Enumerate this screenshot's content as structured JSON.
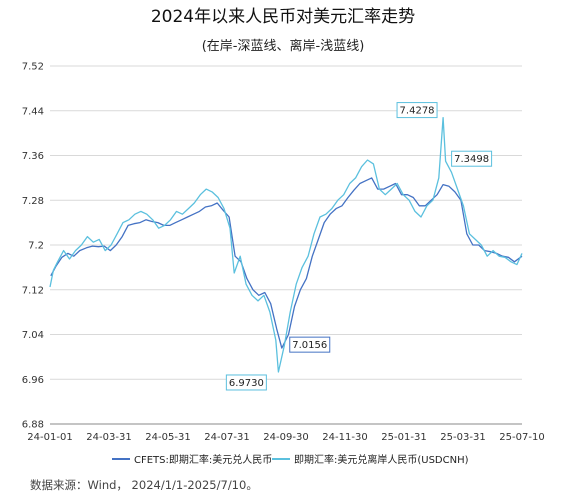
{
  "chart_data": {
    "type": "line",
    "title": "2024年以来人民币对美元汇率走势",
    "subtitle": "(在岸-深蓝线、离岸-浅蓝线)",
    "xlabel": "",
    "ylabel": "",
    "ylim": [
      6.88,
      7.52
    ],
    "y_ticks": [
      "7.52",
      "7.44",
      "7.36",
      "7.28",
      "7.2",
      "7.12",
      "7.04",
      "6.96",
      "6.88"
    ],
    "x_ticks": [
      "24-01-01",
      "24-03-31",
      "24-05-31",
      "24-07-31",
      "24-09-30",
      "24-11-30",
      "25-01-31",
      "25-03-31",
      "25-07-10"
    ],
    "x_range": [
      "2024-01-01",
      "2025-07-10"
    ],
    "grid": "horizontal",
    "legend_position": "bottom",
    "series": [
      {
        "name": "CFETS:即期汇率:美元兑人民币",
        "color": "#4472c4",
        "points": [
          [
            "2024-01-02",
            7.145
          ],
          [
            "2024-01-08",
            7.162
          ],
          [
            "2024-01-15",
            7.178
          ],
          [
            "2024-01-22",
            7.185
          ],
          [
            "2024-01-29",
            7.18
          ],
          [
            "2024-02-05",
            7.19
          ],
          [
            "2024-02-13",
            7.195
          ],
          [
            "2024-02-20",
            7.198
          ],
          [
            "2024-02-27",
            7.197
          ],
          [
            "2024-03-05",
            7.198
          ],
          [
            "2024-03-12",
            7.19
          ],
          [
            "2024-03-19",
            7.2
          ],
          [
            "2024-03-26",
            7.215
          ],
          [
            "2024-04-02",
            7.235
          ],
          [
            "2024-04-09",
            7.238
          ],
          [
            "2024-04-16",
            7.24
          ],
          [
            "2024-04-23",
            7.245
          ],
          [
            "2024-04-30",
            7.242
          ],
          [
            "2024-05-07",
            7.24
          ],
          [
            "2024-05-14",
            7.235
          ],
          [
            "2024-05-21",
            7.235
          ],
          [
            "2024-05-28",
            7.24
          ],
          [
            "2024-06-04",
            7.245
          ],
          [
            "2024-06-11",
            7.25
          ],
          [
            "2024-06-18",
            7.255
          ],
          [
            "2024-06-25",
            7.26
          ],
          [
            "2024-07-02",
            7.268
          ],
          [
            "2024-07-09",
            7.27
          ],
          [
            "2024-07-16",
            7.275
          ],
          [
            "2024-07-23",
            7.262
          ],
          [
            "2024-07-30",
            7.25
          ],
          [
            "2024-08-06",
            7.18
          ],
          [
            "2024-08-13",
            7.17
          ],
          [
            "2024-08-20",
            7.14
          ],
          [
            "2024-08-27",
            7.12
          ],
          [
            "2024-09-03",
            7.11
          ],
          [
            "2024-09-10",
            7.115
          ],
          [
            "2024-09-17",
            7.095
          ],
          [
            "2024-09-24",
            7.05
          ],
          [
            "2024-09-30",
            7.0156
          ],
          [
            "2024-10-08",
            7.04
          ],
          [
            "2024-10-15",
            7.09
          ],
          [
            "2024-10-22",
            7.12
          ],
          [
            "2024-10-29",
            7.14
          ],
          [
            "2024-11-05",
            7.18
          ],
          [
            "2024-11-12",
            7.21
          ],
          [
            "2024-11-19",
            7.24
          ],
          [
            "2024-11-26",
            7.255
          ],
          [
            "2024-12-03",
            7.265
          ],
          [
            "2024-12-10",
            7.27
          ],
          [
            "2024-12-17",
            7.285
          ],
          [
            "2024-12-24",
            7.298
          ],
          [
            "2024-12-31",
            7.31
          ],
          [
            "2025-01-07",
            7.315
          ],
          [
            "2025-01-14",
            7.32
          ],
          [
            "2025-01-21",
            7.3
          ],
          [
            "2025-01-28",
            7.3
          ],
          [
            "2025-02-04",
            7.305
          ],
          [
            "2025-02-11",
            7.31
          ],
          [
            "2025-02-18",
            7.29
          ],
          [
            "2025-02-25",
            7.29
          ],
          [
            "2025-03-04",
            7.285
          ],
          [
            "2025-03-11",
            7.27
          ],
          [
            "2025-03-18",
            7.27
          ],
          [
            "2025-03-25",
            7.28
          ],
          [
            "2025-04-01",
            7.29
          ],
          [
            "2025-04-08",
            7.308
          ],
          [
            "2025-04-15",
            7.305
          ],
          [
            "2025-04-22",
            7.295
          ],
          [
            "2025-04-29",
            7.28
          ],
          [
            "2025-05-06",
            7.22
          ],
          [
            "2025-05-13",
            7.2
          ],
          [
            "2025-05-20",
            7.2
          ],
          [
            "2025-05-27",
            7.19
          ],
          [
            "2025-06-03",
            7.188
          ],
          [
            "2025-06-10",
            7.185
          ],
          [
            "2025-06-17",
            7.18
          ],
          [
            "2025-06-24",
            7.178
          ],
          [
            "2025-07-01",
            7.17
          ],
          [
            "2025-07-10",
            7.18
          ]
        ]
      },
      {
        "name": "即期汇率:美元兑离岸人民币(USDCNH)",
        "color": "#5bc0de",
        "points": [
          [
            "2024-01-01",
            7.125
          ],
          [
            "2024-01-05",
            7.155
          ],
          [
            "2024-01-10",
            7.17
          ],
          [
            "2024-01-17",
            7.19
          ],
          [
            "2024-01-24",
            7.175
          ],
          [
            "2024-01-31",
            7.19
          ],
          [
            "2024-02-07",
            7.2
          ],
          [
            "2024-02-14",
            7.215
          ],
          [
            "2024-02-21",
            7.205
          ],
          [
            "2024-02-28",
            7.21
          ],
          [
            "2024-03-06",
            7.19
          ],
          [
            "2024-03-13",
            7.2
          ],
          [
            "2024-03-20",
            7.22
          ],
          [
            "2024-03-27",
            7.24
          ],
          [
            "2024-04-03",
            7.245
          ],
          [
            "2024-04-10",
            7.255
          ],
          [
            "2024-04-17",
            7.26
          ],
          [
            "2024-04-24",
            7.255
          ],
          [
            "2024-05-01",
            7.245
          ],
          [
            "2024-05-08",
            7.23
          ],
          [
            "2024-05-15",
            7.235
          ],
          [
            "2024-05-22",
            7.245
          ],
          [
            "2024-05-29",
            7.26
          ],
          [
            "2024-06-05",
            7.255
          ],
          [
            "2024-06-12",
            7.265
          ],
          [
            "2024-06-19",
            7.275
          ],
          [
            "2024-06-26",
            7.29
          ],
          [
            "2024-07-03",
            7.3
          ],
          [
            "2024-07-10",
            7.295
          ],
          [
            "2024-07-17",
            7.285
          ],
          [
            "2024-07-24",
            7.265
          ],
          [
            "2024-07-31",
            7.23
          ],
          [
            "2024-08-05",
            7.15
          ],
          [
            "2024-08-12",
            7.18
          ],
          [
            "2024-08-19",
            7.13
          ],
          [
            "2024-08-26",
            7.11
          ],
          [
            "2024-09-02",
            7.1
          ],
          [
            "2024-09-09",
            7.11
          ],
          [
            "2024-09-16",
            7.08
          ],
          [
            "2024-09-23",
            7.03
          ],
          [
            "2024-09-26",
            6.973
          ],
          [
            "2024-10-03",
            7.02
          ],
          [
            "2024-10-10",
            7.08
          ],
          [
            "2024-10-17",
            7.13
          ],
          [
            "2024-10-24",
            7.16
          ],
          [
            "2024-10-31",
            7.18
          ],
          [
            "2024-11-07",
            7.22
          ],
          [
            "2024-11-14",
            7.25
          ],
          [
            "2024-11-21",
            7.255
          ],
          [
            "2024-11-28",
            7.265
          ],
          [
            "2024-12-05",
            7.28
          ],
          [
            "2024-12-12",
            7.29
          ],
          [
            "2024-12-19",
            7.31
          ],
          [
            "2024-12-26",
            7.32
          ],
          [
            "2025-01-02",
            7.34
          ],
          [
            "2025-01-09",
            7.352
          ],
          [
            "2025-01-16",
            7.345
          ],
          [
            "2025-01-23",
            7.3
          ],
          [
            "2025-01-30",
            7.29
          ],
          [
            "2025-02-06",
            7.3
          ],
          [
            "2025-02-13",
            7.31
          ],
          [
            "2025-02-20",
            7.29
          ],
          [
            "2025-02-27",
            7.28
          ],
          [
            "2025-03-06",
            7.26
          ],
          [
            "2025-03-13",
            7.25
          ],
          [
            "2025-03-20",
            7.27
          ],
          [
            "2025-03-27",
            7.28
          ],
          [
            "2025-04-03",
            7.32
          ],
          [
            "2025-04-08",
            7.4278
          ],
          [
            "2025-04-11",
            7.3498
          ],
          [
            "2025-04-18",
            7.33
          ],
          [
            "2025-04-25",
            7.3
          ],
          [
            "2025-05-02",
            7.27
          ],
          [
            "2025-05-09",
            7.22
          ],
          [
            "2025-05-16",
            7.21
          ],
          [
            "2025-05-23",
            7.2
          ],
          [
            "2025-05-30",
            7.18
          ],
          [
            "2025-06-06",
            7.19
          ],
          [
            "2025-06-13",
            7.18
          ],
          [
            "2025-06-20",
            7.178
          ],
          [
            "2025-06-27",
            7.17
          ],
          [
            "2025-07-04",
            7.165
          ],
          [
            "2025-07-10",
            7.185
          ]
        ]
      }
    ],
    "annotations": [
      {
        "label": "7.4278",
        "series": 1,
        "date": "2025-04-08",
        "value": 7.4278
      },
      {
        "label": "7.3498",
        "series": 1,
        "date": "2025-04-11",
        "value": 7.3498
      },
      {
        "label": "7.0156",
        "series": 0,
        "date": "2024-09-30",
        "value": 7.0156
      },
      {
        "label": "6.9730",
        "series": 1,
        "date": "2024-09-26",
        "value": 6.973
      }
    ]
  },
  "source_note": "数据来源：Wind，  2024/1/1-2025/7/10。"
}
